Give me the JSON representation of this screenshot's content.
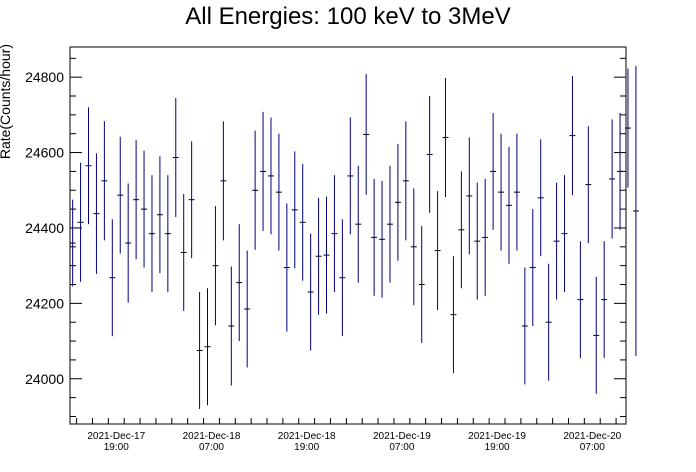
{
  "chart_data": {
    "type": "scatter",
    "title": "All Energies:  100 keV to 3MeV",
    "xlabel": "",
    "ylabel": "Rate(Counts/hour)",
    "ylim": [
      23880,
      24880
    ],
    "yticks": [
      "24000",
      "24200",
      "24400",
      "24600",
      "24800"
    ],
    "xticks": [
      {
        "line1": "2021-Dec-17",
        "line2": "19:00"
      },
      {
        "line1": "2021-Dec-18",
        "line2": "07:00"
      },
      {
        "line1": "2021-Dec-18",
        "line2": "19:00"
      },
      {
        "line1": "2021-Dec-19",
        "line2": "07:00"
      },
      {
        "line1": "2021-Dec-19",
        "line2": "19:00"
      },
      {
        "line1": "2021-Dec-20",
        "line2": "07:00"
      }
    ],
    "x_unit": "hours",
    "xlim": [
      "2021-Dec-17 13:10",
      "2021-Dec-20 11:15"
    ],
    "bin_hours": 1,
    "first_bin_center": "2021-Dec-17 13:30",
    "series_color": "#00007f",
    "series": [
      {
        "values": [
          24360,
          24415,
          24565,
          24438,
          24525,
          24268,
          24487,
          24360,
          24475,
          24450,
          24385,
          24435,
          24385,
          24587,
          24335,
          24475,
          24075,
          24085,
          24300,
          24525,
          24140,
          24255,
          24185,
          24500,
          24550,
          24538,
          24495,
          24295,
          24448,
          24415,
          24230,
          24325,
          24328,
          24385,
          24268,
          24538,
          24410,
          24648,
          24375,
          24370,
          24410,
          24468,
          24525,
          24350,
          24250,
          24595,
          24340,
          24640,
          24170,
          24395,
          24485,
          24365,
          24375,
          24550,
          24495,
          24460,
          24495,
          24140,
          24295,
          24480,
          24150,
          24365,
          24385,
          24645,
          24210,
          24515,
          24115,
          24210,
          24530,
          24550,
          24665,
          24445
        ],
        "errors": [
          115,
          158,
          155,
          160,
          158,
          155,
          155,
          158,
          158,
          155,
          155,
          155,
          155,
          158,
          155,
          155,
          155,
          155,
          158,
          158,
          158,
          155,
          155,
          158,
          158,
          155,
          155,
          170,
          155,
          155,
          155,
          155,
          155,
          155,
          155,
          155,
          155,
          160,
          155,
          155,
          155,
          155,
          158,
          155,
          155,
          155,
          158,
          158,
          155,
          155,
          155,
          155,
          155,
          155,
          155,
          155,
          155,
          155,
          155,
          155,
          155,
          155,
          155,
          158,
          155,
          155,
          155,
          155,
          158,
          155,
          158,
          385
        ]
      }
    ]
  }
}
